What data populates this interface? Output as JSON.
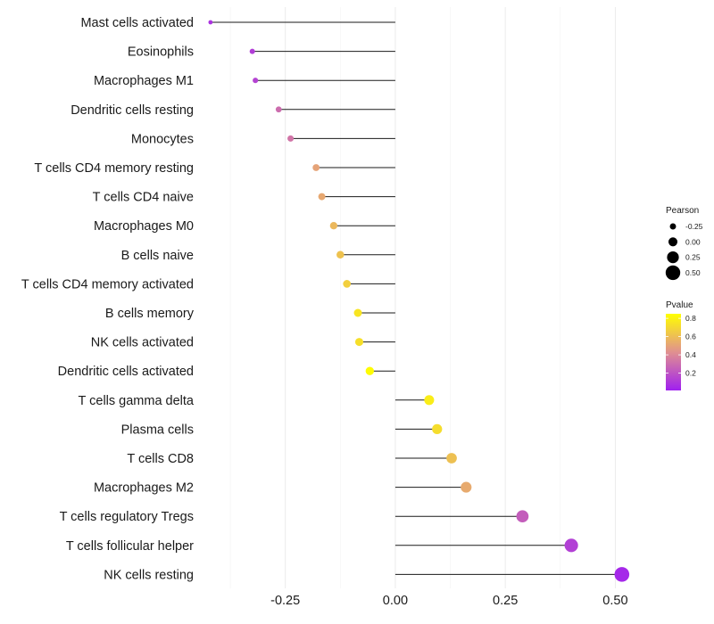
{
  "chart_data": {
    "type": "lollipop",
    "xlabel": "",
    "ylabel": "",
    "xlim": [
      -0.44,
      0.56
    ],
    "x_ticks": [
      {
        "value": -0.25,
        "label": "-0.25"
      },
      {
        "value": 0.0,
        "label": "0.00"
      },
      {
        "value": 0.25,
        "label": "0.25"
      },
      {
        "value": 0.5,
        "label": "0.50"
      }
    ],
    "points": [
      {
        "category": "Mast cells activated",
        "pearson": -0.42,
        "pvalue": 0.08
      },
      {
        "category": "Eosinophils",
        "pearson": -0.325,
        "pvalue": 0.12
      },
      {
        "category": "Macrophages M1",
        "pearson": -0.318,
        "pvalue": 0.14
      },
      {
        "category": "Dendritic cells resting",
        "pearson": -0.265,
        "pvalue": 0.3
      },
      {
        "category": "Monocytes",
        "pearson": -0.238,
        "pvalue": 0.33
      },
      {
        "category": "T cells CD4 memory resting",
        "pearson": -0.18,
        "pvalue": 0.5
      },
      {
        "category": "T cells CD4 naive",
        "pearson": -0.167,
        "pvalue": 0.52
      },
      {
        "category": "Macrophages M0",
        "pearson": -0.14,
        "pvalue": 0.58
      },
      {
        "category": "B cells naive",
        "pearson": -0.125,
        "pvalue": 0.62
      },
      {
        "category": "T cells CD4 memory activated",
        "pearson": -0.11,
        "pvalue": 0.67
      },
      {
        "category": "B cells memory",
        "pearson": -0.085,
        "pvalue": 0.75
      },
      {
        "category": "NK cells activated",
        "pearson": -0.082,
        "pvalue": 0.73
      },
      {
        "category": "Dendritic cells activated",
        "pearson": -0.058,
        "pvalue": 0.84
      },
      {
        "category": "T cells gamma delta",
        "pearson": 0.077,
        "pvalue": 0.78
      },
      {
        "category": "Plasma cells",
        "pearson": 0.095,
        "pvalue": 0.72
      },
      {
        "category": "T cells CD8",
        "pearson": 0.128,
        "pvalue": 0.61
      },
      {
        "category": "Macrophages M2",
        "pearson": 0.161,
        "pvalue": 0.53
      },
      {
        "category": "T cells regulatory  Tregs",
        "pearson": 0.289,
        "pvalue": 0.24
      },
      {
        "category": "T cells follicular helper",
        "pearson": 0.4,
        "pvalue": 0.13
      },
      {
        "category": "NK cells resting",
        "pearson": 0.515,
        "pvalue": 0.04
      }
    ],
    "legend_size": {
      "title": "Pearson",
      "entries": [
        {
          "label": "-0.25",
          "value": -0.25
        },
        {
          "label": "0.00",
          "value": 0.0
        },
        {
          "label": "0.25",
          "value": 0.25
        },
        {
          "label": "0.50",
          "value": 0.5
        }
      ]
    },
    "legend_color": {
      "title": "Pvalue",
      "range": [
        0.01,
        0.85
      ],
      "low_color": "#a020f0",
      "mid_color": "#e09090",
      "high_color": "#ffff00",
      "ticks": [
        {
          "label": "0.8",
          "value": 0.8
        },
        {
          "label": "0.6",
          "value": 0.6
        },
        {
          "label": "0.4",
          "value": 0.4
        },
        {
          "label": "0.2",
          "value": 0.2
        }
      ]
    },
    "grid": true
  }
}
